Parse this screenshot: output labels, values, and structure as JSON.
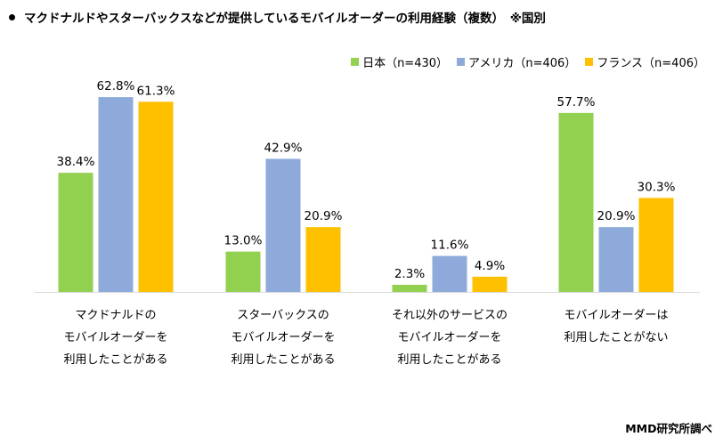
{
  "title": "マクドナルドやスターバックスなどが提供しているモバイルオーダーの利用経験（複数）　※国別",
  "source": "MMD研究所調べ",
  "chart_data": {
    "type": "bar",
    "categories": [
      [
        "マクドナルドの",
        "モバイルオーダーを",
        "利用したことがある"
      ],
      [
        "スターバックスの",
        "モバイルオーダーを",
        "利用したことがある"
      ],
      [
        "それ以外のサービスの",
        "モバイルオーダーを",
        "利用したことがある"
      ],
      [
        "モバイルオーダーは",
        "利用したことがない"
      ]
    ],
    "series": [
      {
        "name": "日本（n=430）",
        "color": "#92d050",
        "values": [
          38.4,
          13.0,
          2.3,
          57.7
        ]
      },
      {
        "name": "アメリカ（n=406）",
        "color": "#8eaadb",
        "values": [
          62.8,
          42.9,
          11.6,
          20.9
        ]
      },
      {
        "name": "フランス（n=406）",
        "color": "#ffc000",
        "values": [
          61.3,
          20.9,
          4.9,
          30.3
        ]
      }
    ],
    "value_format": "%.1f%",
    "ylim": [
      0,
      70
    ],
    "grid": false,
    "legend_position": "top-right"
  }
}
